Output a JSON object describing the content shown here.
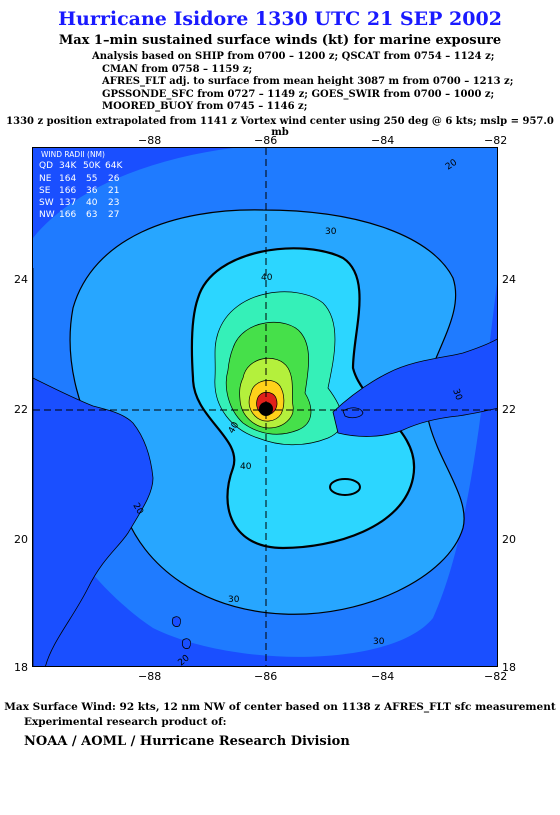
{
  "title": "Hurricane Isidore 1330 UTC 21 SEP 2002",
  "subtitle": "Max 1–min sustained surface winds (kt) for marine exposure",
  "analysis_lines": [
    "Analysis based on  SHIP from 0700 – 1200 z;  QSCAT from 0754 – 1124 z;",
    "CMAN from 0758 – 1159 z;",
    "AFRES_FLT adj. to surface from mean height 3087 m from 0700 – 1213 z;",
    "GPSSONDE_SFC from 0727 – 1149 z;  GOES_SWIR from 0700 – 1000 z;",
    "MOORED_BUOY from 0745 – 1146 z;"
  ],
  "position_line": "1330 z position extrapolated from 1141 z Vortex wind center using 250 deg @ 6 kts; mslp = 957.0 mb",
  "wind_radii": {
    "title": "WIND RADII (NM)",
    "header": [
      "QD",
      "34K",
      "50K",
      "64K"
    ],
    "rows": [
      [
        "NE",
        "164",
        "55",
        "26"
      ],
      [
        "SE",
        "166",
        "36",
        "21"
      ],
      [
        "SW",
        "137",
        "40",
        "23"
      ],
      [
        "NW",
        "166",
        "63",
        "27"
      ]
    ]
  },
  "axes": {
    "lon_labels": [
      "−88",
      "−86",
      "−84",
      "−82"
    ],
    "lat_labels": [
      "24",
      "22",
      "20",
      "18"
    ]
  },
  "contour_labels": [
    "20",
    "30",
    "40",
    "40",
    "40",
    "30",
    "20",
    "30",
    "30",
    "20"
  ],
  "colors": {
    "title": "#1a1aff",
    "background_ocean": "#1a4fff",
    "wind_20": "#1f7bff",
    "wind_30": "#27a6ff",
    "wind_40": "#2cd6ff",
    "wind_50": "#35f0b8",
    "wind_60": "#46e04a",
    "wind_70": "#b4f03c",
    "wind_80": "#ffd11a",
    "wind_90": "#e0201a"
  },
  "footer": {
    "max_wind": "Max Surface Wind: 92 kts, 12 nm NW of center based on 1138 z AFRES_FLT sfc measurement",
    "experimental": "Experimental research product of:",
    "org": "NOAA / AOML / Hurricane Research Division"
  }
}
